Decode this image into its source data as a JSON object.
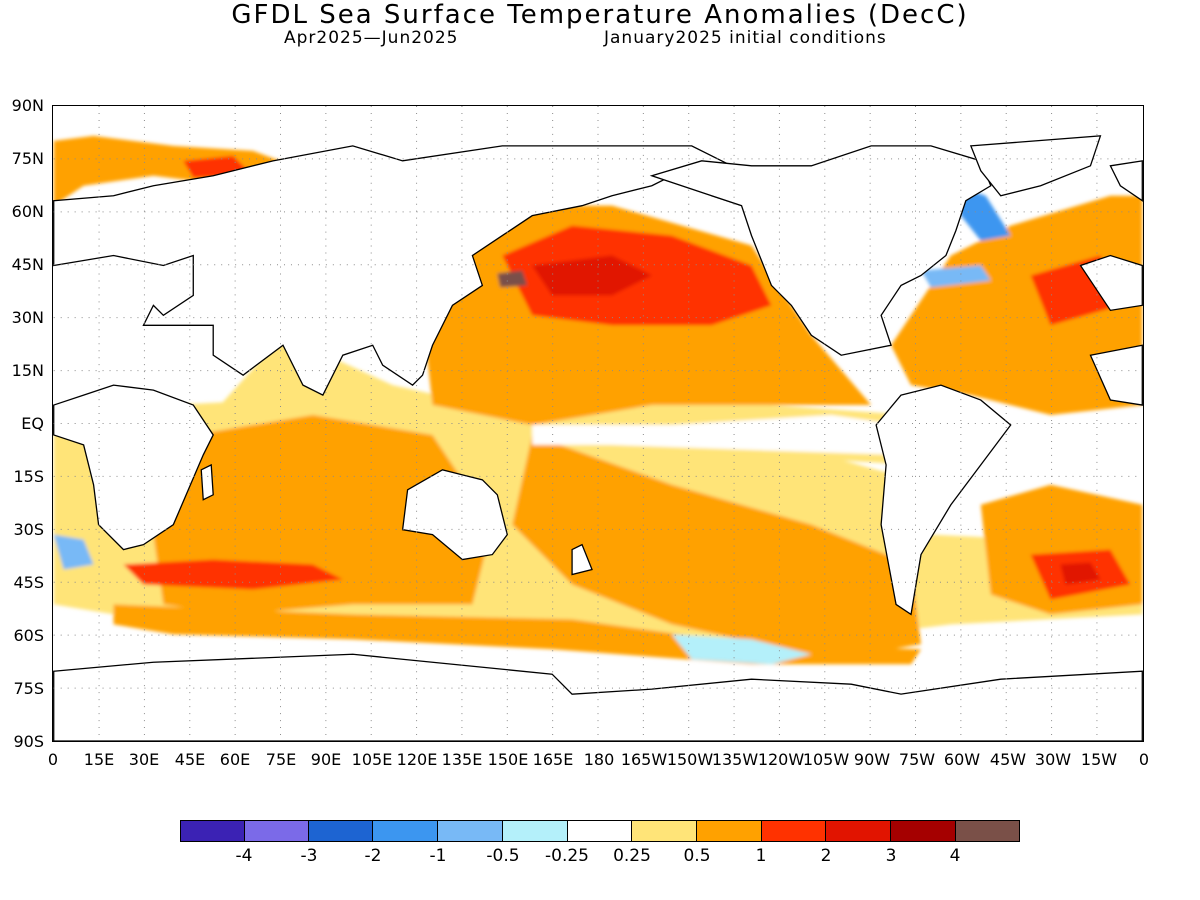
{
  "title": "GFDL Sea Surface Temperature Anomalies (DecC)",
  "subtitle_left": "Apr2025—Jun2025",
  "subtitle_right": "January2025 initial conditions",
  "lat_labels": [
    "90N",
    "75N",
    "60N",
    "45N",
    "30N",
    "15N",
    "EQ",
    "15S",
    "30S",
    "45S",
    "60S",
    "75S",
    "90S"
  ],
  "lon_labels": [
    "0",
    "15E",
    "30E",
    "45E",
    "60E",
    "75E",
    "90E",
    "105E",
    "120E",
    "135E",
    "150E",
    "165E",
    "180",
    "165W",
    "150W",
    "135W",
    "120W",
    "105W",
    "90W",
    "75W",
    "60W",
    "45W",
    "30W",
    "15W",
    "0"
  ],
  "colorbar": {
    "colors": [
      "#3b22b4",
      "#7b6ae8",
      "#1d64d2",
      "#3c96f0",
      "#78b9f6",
      "#b4f0fa",
      "#ffffff",
      "#ffe478",
      "#ffa100",
      "#ff3200",
      "#e11400",
      "#a50000",
      "#7a5048"
    ],
    "labels": [
      "-4",
      "-3",
      "-2",
      "-1",
      "-0.5",
      "-0.25",
      "0.25",
      "0.5",
      "1",
      "2",
      "3",
      "4"
    ]
  },
  "colors": {
    "land_outline": "#000000",
    "grid_dots": "#8c8c8c"
  }
}
